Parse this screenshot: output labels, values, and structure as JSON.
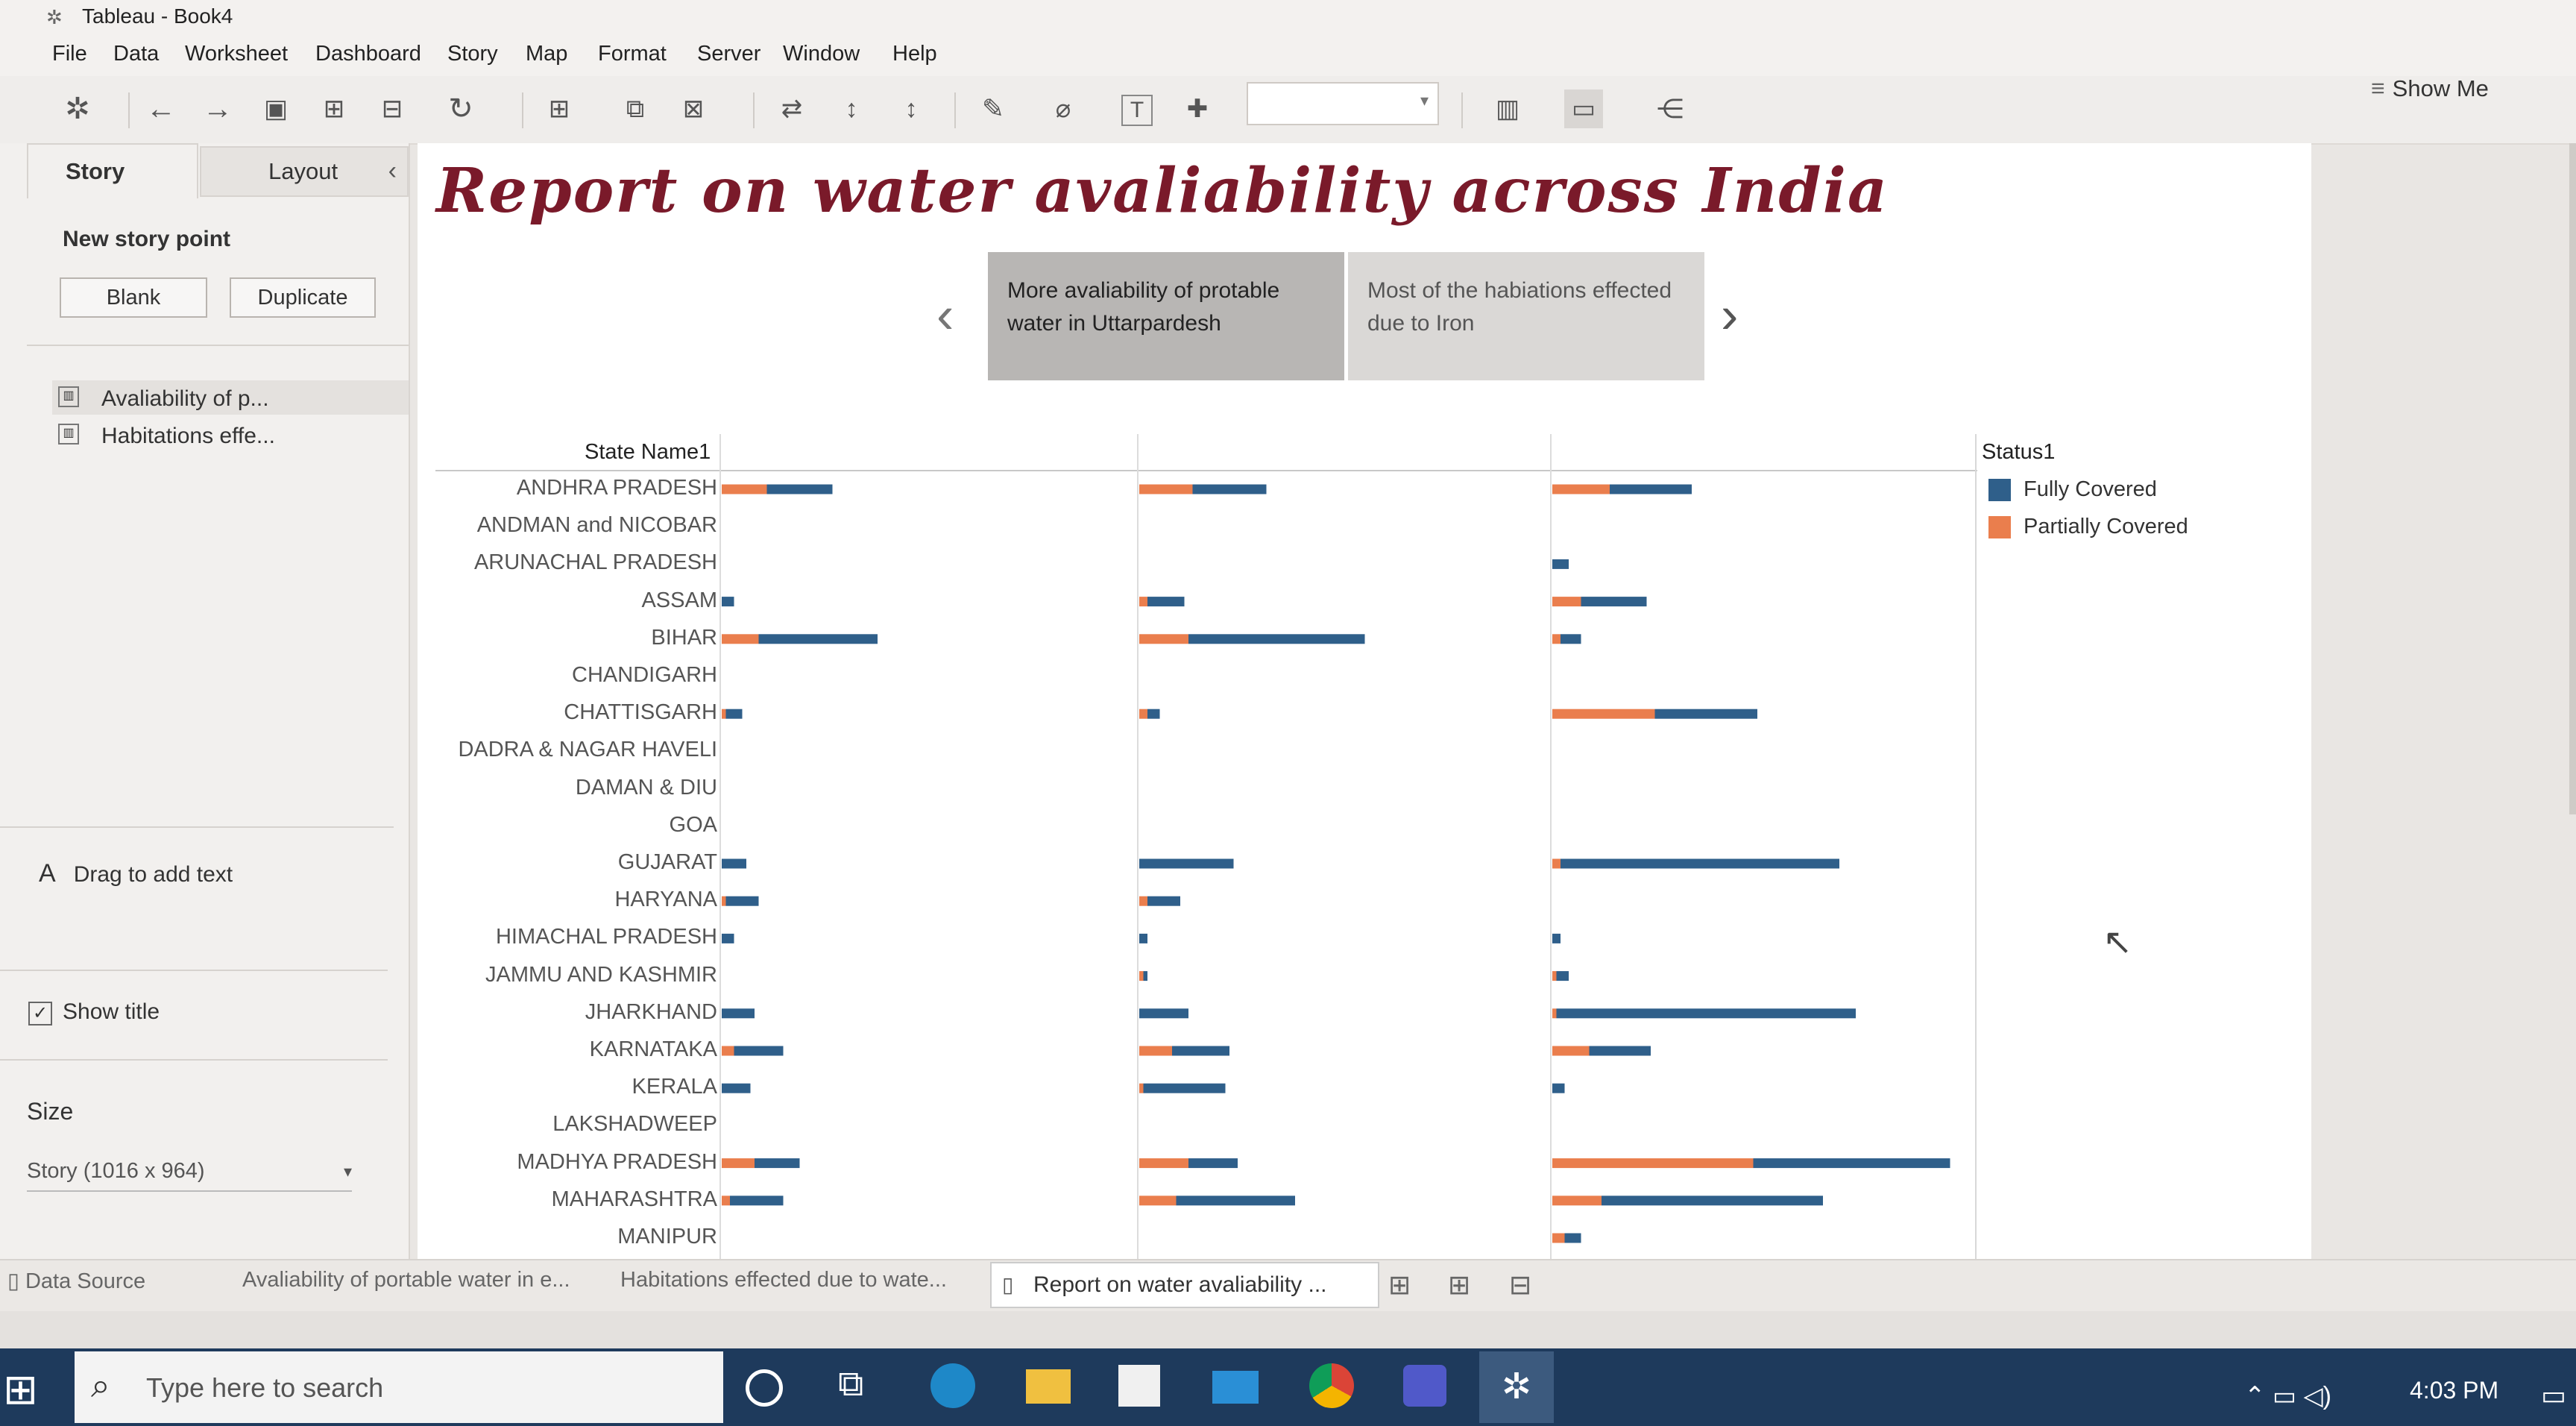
{
  "window": {
    "title": "Tableau - Book4"
  },
  "menu": [
    "File",
    "Data",
    "Worksheet",
    "Dashboard",
    "Story",
    "Map",
    "Format",
    "Server",
    "Window",
    "Help"
  ],
  "toolbar": {
    "show_me": "Show Me"
  },
  "left_panel": {
    "tab_story": "Story",
    "tab_layout": "Layout",
    "new_story_point": "New story point",
    "blank_btn": "Blank",
    "duplicate_btn": "Duplicate",
    "sheets": [
      "Avaliability of p...",
      "Habitations effe..."
    ],
    "drag_text": "Drag to add text",
    "show_title": "Show title",
    "size_label": "Size",
    "size_value": "Story (1016 x 964)"
  },
  "story": {
    "title": "Report on water avaliability across India",
    "points": [
      "More avaliability of protable water in Uttarpardesh",
      "Most of the habiations effected due to Iron"
    ]
  },
  "chart_data": {
    "type": "bar",
    "row_header": "State Name1",
    "legend_title": "Status1",
    "series_names": [
      "Fully Covered",
      "Partially Covered"
    ],
    "colors": {
      "fully": "#2f5f8a",
      "partially": "#ea7e4d"
    },
    "categories": [
      "ANDHRA PRADESH",
      "ANDMAN and NICOBAR",
      "ARUNACHAL PRADESH",
      "ASSAM",
      "BIHAR",
      "CHANDIGARH",
      "CHATTISGARH",
      "DADRA & NAGAR HAVELI",
      "DAMAN & DIU",
      "GOA",
      "GUJARAT",
      "HARYANA",
      "HIMACHAL PRADESH",
      "JAMMU AND KASHMIR",
      "JHARKHAND",
      "KARNATAKA",
      "KERALA",
      "LAKSHADWEEP",
      "MADHYA PRADESH",
      "MAHARASHTRA",
      "MANIPUR"
    ],
    "panes": [
      {
        "partially": [
          11,
          0,
          0,
          0,
          9,
          0,
          1,
          0,
          0,
          0,
          0,
          1,
          0,
          0,
          0,
          3,
          0,
          0,
          8,
          2,
          0
        ],
        "fully": [
          16,
          0,
          0,
          3,
          29,
          0,
          4,
          0,
          0,
          0,
          6,
          8,
          3,
          0,
          8,
          12,
          7,
          0,
          11,
          13,
          0
        ]
      },
      {
        "partially": [
          13,
          0,
          0,
          2,
          12,
          0,
          2,
          0,
          0,
          0,
          0,
          2,
          0,
          1,
          0,
          8,
          1,
          0,
          12,
          9,
          0
        ],
        "fully": [
          18,
          0,
          0,
          9,
          43,
          0,
          3,
          0,
          0,
          0,
          23,
          8,
          2,
          1,
          12,
          14,
          20,
          0,
          12,
          29,
          0
        ]
      },
      {
        "partially": [
          14,
          0,
          0,
          7,
          2,
          0,
          25,
          0,
          0,
          0,
          2,
          0,
          0,
          1,
          1,
          9,
          0,
          0,
          49,
          12,
          3
        ],
        "fully": [
          20,
          0,
          4,
          16,
          5,
          0,
          25,
          0,
          0,
          0,
          68,
          0,
          2,
          3,
          73,
          15,
          3,
          0,
          48,
          54,
          4
        ]
      }
    ]
  },
  "bottom_tabs": [
    "Data Source",
    "Avaliability of portable water in e...",
    "Habitations effected due to wate...",
    "Report on water avaliability ..."
  ],
  "taskbar": {
    "search_placeholder": "Type here to search",
    "time": "4:03 PM"
  }
}
